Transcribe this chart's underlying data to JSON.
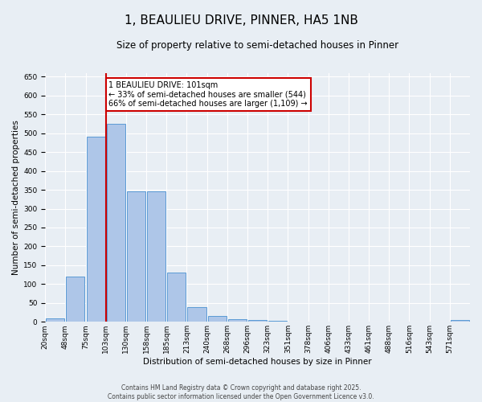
{
  "title": "1, BEAULIEU DRIVE, PINNER, HA5 1NB",
  "subtitle": "Size of property relative to semi-detached houses in Pinner",
  "xlabel": "Distribution of semi-detached houses by size in Pinner",
  "ylabel": "Number of semi-detached properties",
  "footer_line1": "Contains HM Land Registry data © Crown copyright and database right 2025.",
  "footer_line2": "Contains public sector information licensed under the Open Government Licence v3.0.",
  "property_label": "1 BEAULIEU DRIVE: 101sqm",
  "pct_smaller": 33,
  "pct_larger": 66,
  "n_smaller": 544,
  "n_larger": 1109,
  "bin_labels": [
    "20sqm",
    "48sqm",
    "75sqm",
    "103sqm",
    "130sqm",
    "158sqm",
    "185sqm",
    "213sqm",
    "240sqm",
    "268sqm",
    "296sqm",
    "323sqm",
    "351sqm",
    "378sqm",
    "406sqm",
    "433sqm",
    "461sqm",
    "488sqm",
    "516sqm",
    "543sqm",
    "571sqm"
  ],
  "bar_values": [
    10,
    120,
    490,
    525,
    345,
    345,
    130,
    40,
    16,
    8,
    5,
    3,
    1,
    0,
    0,
    0,
    0,
    0,
    0,
    0,
    4
  ],
  "bar_color": "#aec6e8",
  "bar_edge_color": "#5b9bd5",
  "marker_color": "#cc0000",
  "marker_bin_index": 3,
  "ylim": [
    0,
    660
  ],
  "yticks": [
    0,
    50,
    100,
    150,
    200,
    250,
    300,
    350,
    400,
    450,
    500,
    550,
    600,
    650
  ],
  "background_color": "#e8eef4",
  "annotation_box_color": "#ffffff",
  "annotation_box_edge": "#cc0000",
  "title_fontsize": 11,
  "subtitle_fontsize": 8.5,
  "axis_label_fontsize": 7.5,
  "tick_fontsize": 6.5,
  "annotation_fontsize": 7,
  "footer_fontsize": 5.5
}
